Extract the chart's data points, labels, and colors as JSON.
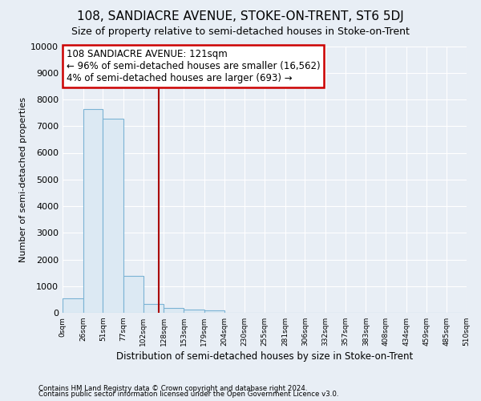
{
  "title": "108, SANDIACRE AVENUE, STOKE-ON-TRENT, ST6 5DJ",
  "subtitle": "Size of property relative to semi-detached houses in Stoke-on-Trent",
  "xlabel": "Distribution of semi-detached houses by size in Stoke-on-Trent",
  "ylabel": "Number of semi-detached properties",
  "footnote1": "Contains HM Land Registry data © Crown copyright and database right 2024.",
  "footnote2": "Contains public sector information licensed under the Open Government Licence v3.0.",
  "annotation_line1": "108 SANDIACRE AVENUE: 121sqm",
  "annotation_line2": "← 96% of semi-detached houses are smaller (16,562)",
  "annotation_line3": "4% of semi-detached houses are larger (693) →",
  "bar_color": "#dce9f3",
  "bar_edge_color": "#7bb3d4",
  "vline_color": "#aa0000",
  "vline_x": 121,
  "bin_edges": [
    0,
    26,
    51,
    77,
    102,
    128,
    153,
    179,
    204,
    230,
    255,
    281,
    306,
    332,
    357,
    383,
    408,
    434,
    459,
    485,
    510
  ],
  "bar_heights": [
    550,
    7650,
    7280,
    1370,
    330,
    170,
    110,
    90,
    0,
    0,
    0,
    0,
    0,
    0,
    0,
    0,
    0,
    0,
    0,
    0
  ],
  "ylim": [
    0,
    10000
  ],
  "ytick_step": 1000,
  "background_color": "#e8eef5",
  "plot_bg_color": "#e8eef5",
  "annotation_box_color": "#ffffff",
  "annotation_box_edge_color": "#cc0000",
  "title_fontsize": 11,
  "subtitle_fontsize": 9
}
